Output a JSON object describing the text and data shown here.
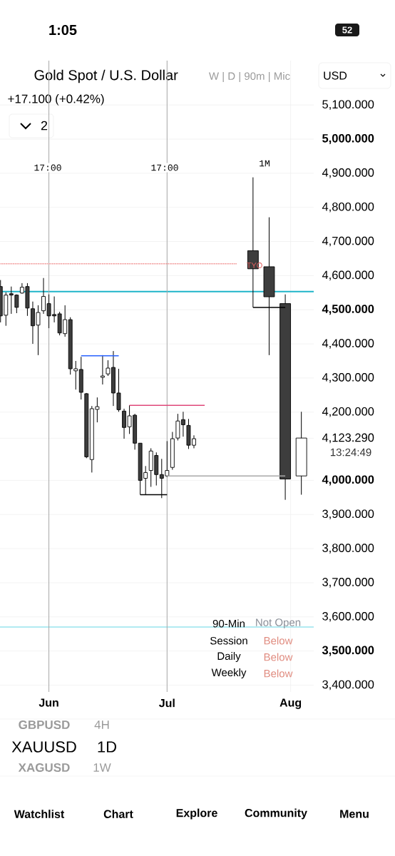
{
  "chart_data": {
    "type": "candlestick",
    "title": "Gold Spot / U.S. Dollar",
    "subtitle": "+17.100 (+0.42%)",
    "categories": [
      null,
      null,
      null,
      null,
      null,
      null,
      null,
      null,
      null,
      "Jun",
      null,
      null,
      null,
      null,
      null,
      null,
      null,
      null,
      null,
      null,
      null,
      null,
      null,
      null,
      null,
      null,
      null,
      null,
      null,
      null,
      null,
      "Jul",
      null,
      null,
      null,
      null,
      null,
      null,
      null,
      null,
      null,
      null,
      null,
      null,
      null,
      null,
      null,
      null,
      null,
      null,
      null,
      null,
      null,
      null,
      "Aug",
      null,
      null
    ],
    "ylim": [
      3380,
      5230
    ],
    "yticks": [
      {
        "value": 3400,
        "label": "3,400.000"
      },
      {
        "value": 3500,
        "label": "3,500.000"
      },
      {
        "value": 3600,
        "label": "3,600.000"
      },
      {
        "value": 3700,
        "label": "3,700.000"
      },
      {
        "value": 3800,
        "label": "3,800.000"
      },
      {
        "value": 3900,
        "label": "3,900.000"
      },
      {
        "value": 4000,
        "label": "4,000.000"
      },
      {
        "value": 4123.29,
        "label": "4,123.290"
      },
      {
        "value": 4200,
        "label": "4,200.000"
      },
      {
        "value": 4300,
        "label": "4,300.000"
      },
      {
        "value": 4400,
        "label": "4,400.000"
      },
      {
        "value": 4500,
        "label": "4,500.000"
      },
      {
        "value": 4600,
        "label": "4,600.000"
      },
      {
        "value": 4700,
        "label": "4,700.000"
      },
      {
        "value": 4800,
        "label": "4,800.000"
      },
      {
        "value": 4900,
        "label": "4,900.000"
      },
      {
        "value": 5000,
        "label": "5,000.000"
      },
      {
        "value": 5100,
        "label": "5,100.000"
      }
    ],
    "grid": true,
    "series": [
      {
        "ohlc": [
          [
            4568,
            4587,
            4463,
            4482
          ],
          [
            4484,
            4551,
            4453,
            4543
          ],
          [
            4547,
            4568,
            4488,
            4543
          ],
          [
            4543,
            4545,
            4490,
            4507
          ],
          [
            4549,
            4578,
            4547,
            4566
          ],
          [
            4568,
            4578,
            4482,
            4505
          ],
          [
            4503,
            4524,
            4400,
            4453
          ],
          [
            4455,
            4513,
            4367,
            4492
          ],
          [
            4497,
            4593,
            4488,
            4539
          ],
          [
            4518,
            4545,
            4446,
            4482
          ],
          [
            4486,
            4539,
            4463,
            4482
          ],
          [
            4488,
            4494,
            4425,
            4432
          ],
          [
            4430,
            4513,
            4421,
            4471
          ],
          [
            4471,
            4478,
            4310,
            4327
          ],
          [
            4321,
            4350,
            4266,
            4327
          ],
          [
            4325,
            4362,
            4237,
            4258
          ],
          [
            4254,
            4256,
            4065,
            4069
          ],
          [
            4061,
            4218,
            4023,
            4210
          ],
          [
            4208,
            4243,
            4170,
            4216
          ],
          [
            4302,
            4367,
            4281,
            4306
          ],
          [
            4312,
            4352,
            4306,
            4329
          ],
          [
            4331,
            4379,
            4218,
            4256
          ],
          [
            4256,
            4327,
            4201,
            4207
          ],
          [
            4203,
            4210,
            4122,
            4155
          ],
          [
            4157,
            4220,
            4136,
            4189
          ],
          [
            4191,
            4195,
            4090,
            4109
          ],
          [
            4109,
            4109,
            3958,
            4000
          ],
          [
            4006,
            4042,
            3958,
            4023
          ],
          [
            4029,
            4094,
            3981,
            4086
          ],
          [
            4073,
            4082,
            3985,
            4017
          ],
          [
            4017,
            4063,
            3948,
            4006
          ],
          [
            4013,
            4115,
            4010,
            4029
          ],
          [
            4038,
            4142,
            4031,
            4122
          ],
          [
            4124,
            4195,
            4117,
            4174
          ],
          [
            4178,
            4201,
            4128,
            4163
          ],
          [
            4161,
            4180,
            4092,
            4103
          ],
          [
            4103,
            4132,
            4094,
            4122
          ],
          null,
          null,
          null,
          null,
          null,
          null,
          null,
          null,
          null,
          null,
          null,
          null,
          null,
          null,
          null,
          null,
          null,
          null,
          null,
          null
        ]
      },
      {
        "ohlc": [
          null,
          null,
          null,
          null,
          null,
          null,
          null,
          null,
          null,
          null,
          null,
          null,
          null,
          null,
          null,
          null,
          null,
          null,
          null,
          null,
          null,
          null,
          null,
          null,
          null,
          null,
          null,
          null,
          null,
          null,
          null,
          null,
          null,
          null,
          null,
          null,
          null,
          null,
          null,
          null,
          null,
          null,
          null,
          null,
          null,
          null,
          null,
          [
            4673,
            4888,
            4507,
            4620
          ],
          null,
          null,
          [
            4626,
            4771,
            4367,
            4538
          ],
          null,
          null,
          [
            4518,
            4545,
            3943,
            4004
          ],
          null,
          null,
          [
            4013,
            4201,
            3958,
            4124
          ]
        ]
      },
      {
        "type": "line",
        "color": "#f08a8a",
        "line_style": "dotted",
        "values": [
          4635,
          4635,
          4635,
          4635,
          4635,
          4635,
          4635,
          4635,
          4635,
          4635,
          4635,
          4635,
          4635,
          4635,
          4635,
          4635,
          4635,
          4635,
          4635,
          4635,
          4635,
          4635,
          4635,
          4635,
          4635,
          4635,
          4635,
          4635,
          4635,
          4635,
          4635,
          4635,
          4635,
          4635,
          4635,
          4635,
          4635,
          4635,
          4635,
          4635,
          4635,
          4635,
          4635,
          4635,
          4635,
          null,
          null,
          null,
          null,
          null,
          null,
          null,
          null,
          null,
          null,
          null,
          null
        ]
      },
      {
        "type": "line",
        "color": "#2962ff",
        "values": [
          null,
          null,
          null,
          null,
          null,
          null,
          null,
          null,
          null,
          null,
          null,
          null,
          null,
          null,
          null,
          4365,
          4365,
          4365,
          4365,
          4365,
          4365,
          4365,
          4365,
          null,
          null,
          null,
          null,
          null,
          null,
          null,
          null,
          null,
          null,
          null,
          null,
          null,
          null,
          null,
          null,
          null,
          null,
          null,
          null,
          null,
          null,
          null,
          null,
          null,
          null,
          null,
          null,
          null,
          null,
          null,
          null,
          null,
          null
        ]
      },
      {
        "type": "line",
        "color": "#e0487a",
        "values": [
          null,
          null,
          null,
          null,
          null,
          null,
          null,
          null,
          null,
          null,
          null,
          null,
          null,
          null,
          null,
          null,
          null,
          null,
          null,
          null,
          null,
          null,
          null,
          null,
          4220,
          4220,
          4220,
          4220,
          4220,
          4220,
          4220,
          4220,
          4220,
          4220,
          4220,
          4220,
          4220,
          4220,
          4220,
          null,
          null,
          null,
          null,
          null,
          null,
          null,
          null,
          null,
          null,
          null,
          null,
          null,
          null,
          null,
          null,
          null,
          null
        ]
      },
      {
        "type": "line",
        "color": "#000000",
        "values": [
          null,
          null,
          null,
          null,
          null,
          null,
          null,
          null,
          null,
          null,
          null,
          null,
          null,
          null,
          null,
          null,
          null,
          null,
          null,
          null,
          null,
          null,
          null,
          null,
          null,
          null,
          3958,
          3958,
          3958,
          3958,
          3958,
          3958,
          null,
          null,
          null,
          null,
          null,
          null,
          null,
          null,
          null,
          null,
          null,
          null,
          null,
          null,
          null,
          null,
          null,
          null,
          null,
          null,
          null,
          null,
          null,
          null,
          null
        ]
      },
      {
        "type": "line",
        "color": "#a8a8a8",
        "values": [
          null,
          null,
          null,
          null,
          null,
          null,
          null,
          null,
          null,
          null,
          null,
          null,
          null,
          null,
          null,
          null,
          null,
          null,
          null,
          null,
          null,
          null,
          null,
          null,
          null,
          null,
          null,
          null,
          null,
          null,
          null,
          4013,
          4013,
          4013,
          4013,
          4013,
          4013,
          4013,
          4013,
          4013,
          4013,
          4013,
          4013,
          4013,
          4013,
          4013,
          4013,
          4013,
          4013,
          4013,
          4013,
          4013,
          4013,
          4013,
          null,
          null,
          null
        ]
      },
      {
        "type": "line",
        "color": "#000000",
        "values": [
          null,
          null,
          null,
          null,
          null,
          null,
          null,
          null,
          null,
          null,
          null,
          null,
          null,
          null,
          null,
          null,
          null,
          null,
          null,
          null,
          null,
          null,
          null,
          null,
          null,
          null,
          null,
          null,
          null,
          null,
          null,
          null,
          null,
          null,
          null,
          null,
          null,
          null,
          null,
          null,
          null,
          null,
          null,
          null,
          null,
          null,
          null,
          4507,
          4507,
          4507,
          4507,
          4507,
          4507,
          4507,
          null,
          null,
          null
        ]
      }
    ],
    "ref_lines": [
      {
        "axis": "y",
        "value": 4553,
        "color": "#1fb5c9"
      },
      {
        "axis": "y",
        "value": 3570,
        "color": "#b2ebf2"
      },
      {
        "axis": "x",
        "value": "Jun",
        "color": "#a8a8a8"
      },
      {
        "axis": "x",
        "value": "Jul",
        "color": "#a8a8a8"
      }
    ],
    "annotations": [
      "1:05",
      "52",
      "W | D | 90m | Mic",
      "USD",
      "2",
      "TYO",
      "13:24:49",
      "90-Min",
      "Not Open",
      "Session",
      "Below",
      "Daily",
      "Below",
      "Weekly",
      "Below",
      "GBPUSD",
      "4H",
      "XAUUSD",
      "1D",
      "XAGUSD",
      "1W",
      "Watchlist",
      "Chart",
      "Explore",
      "Community",
      "Menu",
      "1M",
      "17:00",
      "17:00"
    ]
  }
}
